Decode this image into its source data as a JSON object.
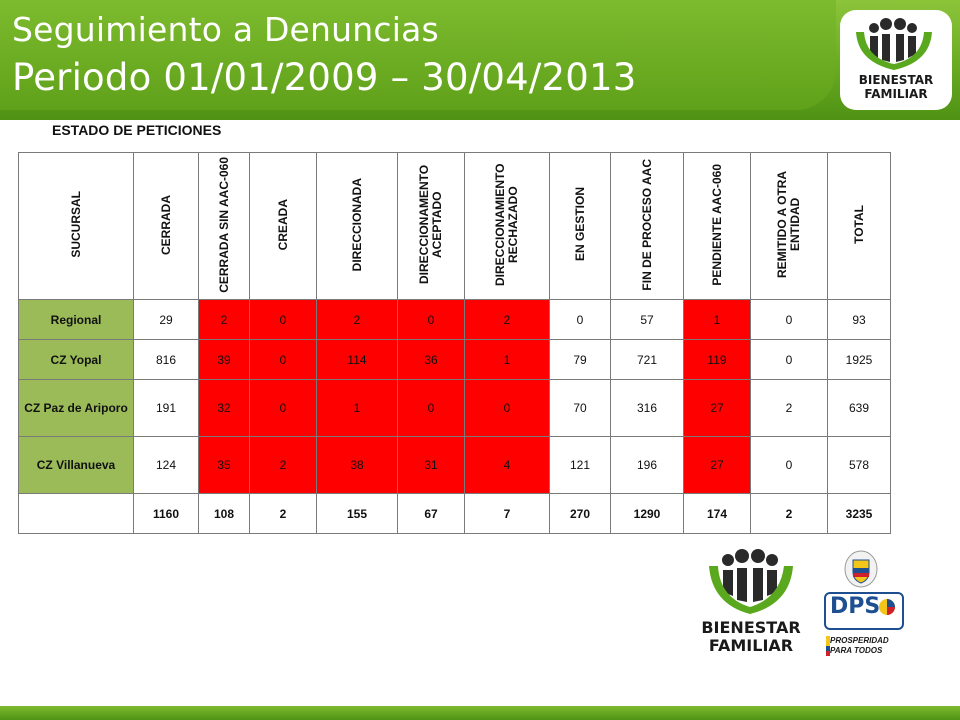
{
  "header": {
    "title_line1": "Seguimiento a Denuncias",
    "title_line2": "Periodo 01/01/2009 – 30/04/2013"
  },
  "table": {
    "caption": "ESTADO DE PETICIONES",
    "columns": [
      "SUCURSAL",
      "CERRADA",
      "CERRADA SIN AAC-060",
      "CREADA",
      "DIRECCIONADA",
      "DIRECCIONAMENTO ACEPTADO",
      "DIRECCIONAMIENTO RECHAZADO",
      "EN GESTION",
      "FIN DE PROCESO AAC",
      "PENDIENTE AAC-060",
      "REMITIDO A OTRA ENTIDAD",
      "TOTAL"
    ],
    "rows": [
      {
        "label": "Regional",
        "values": [
          "29",
          "2",
          "0",
          "2",
          "0",
          "2",
          "0",
          "57",
          "1",
          "0",
          "93"
        ]
      },
      {
        "label": "CZ Yopal",
        "values": [
          "816",
          "39",
          "0",
          "114",
          "36",
          "1",
          "79",
          "721",
          "119",
          "0",
          "1925"
        ]
      },
      {
        "label": "CZ Paz de Ariporo",
        "values": [
          "191",
          "32",
          "0",
          "1",
          "0",
          "0",
          "70",
          "316",
          "27",
          "2",
          "639"
        ]
      },
      {
        "label": "CZ Villanueva",
        "values": [
          "124",
          "35",
          "2",
          "38",
          "31",
          "4",
          "121",
          "196",
          "27",
          "0",
          "578"
        ]
      }
    ],
    "totals": [
      "1160",
      "108",
      "2",
      "155",
      "67",
      "7",
      "270",
      "1290",
      "174",
      "2",
      "3235"
    ],
    "red_columns": [
      1,
      2,
      3,
      4,
      5,
      8
    ]
  },
  "logos": {
    "brand_line1": "BIENESTAR",
    "brand_line2": "FAMILIAR",
    "dps": "DPS",
    "prosperidad_line1": "PROSPERIDAD",
    "prosperidad_line2": "PARA TODOS"
  },
  "colors": {
    "green": "#6aab22",
    "row_label_green": "#9bbb59",
    "highlight_red": "#ff0000",
    "dps_blue": "#1d4f91"
  }
}
